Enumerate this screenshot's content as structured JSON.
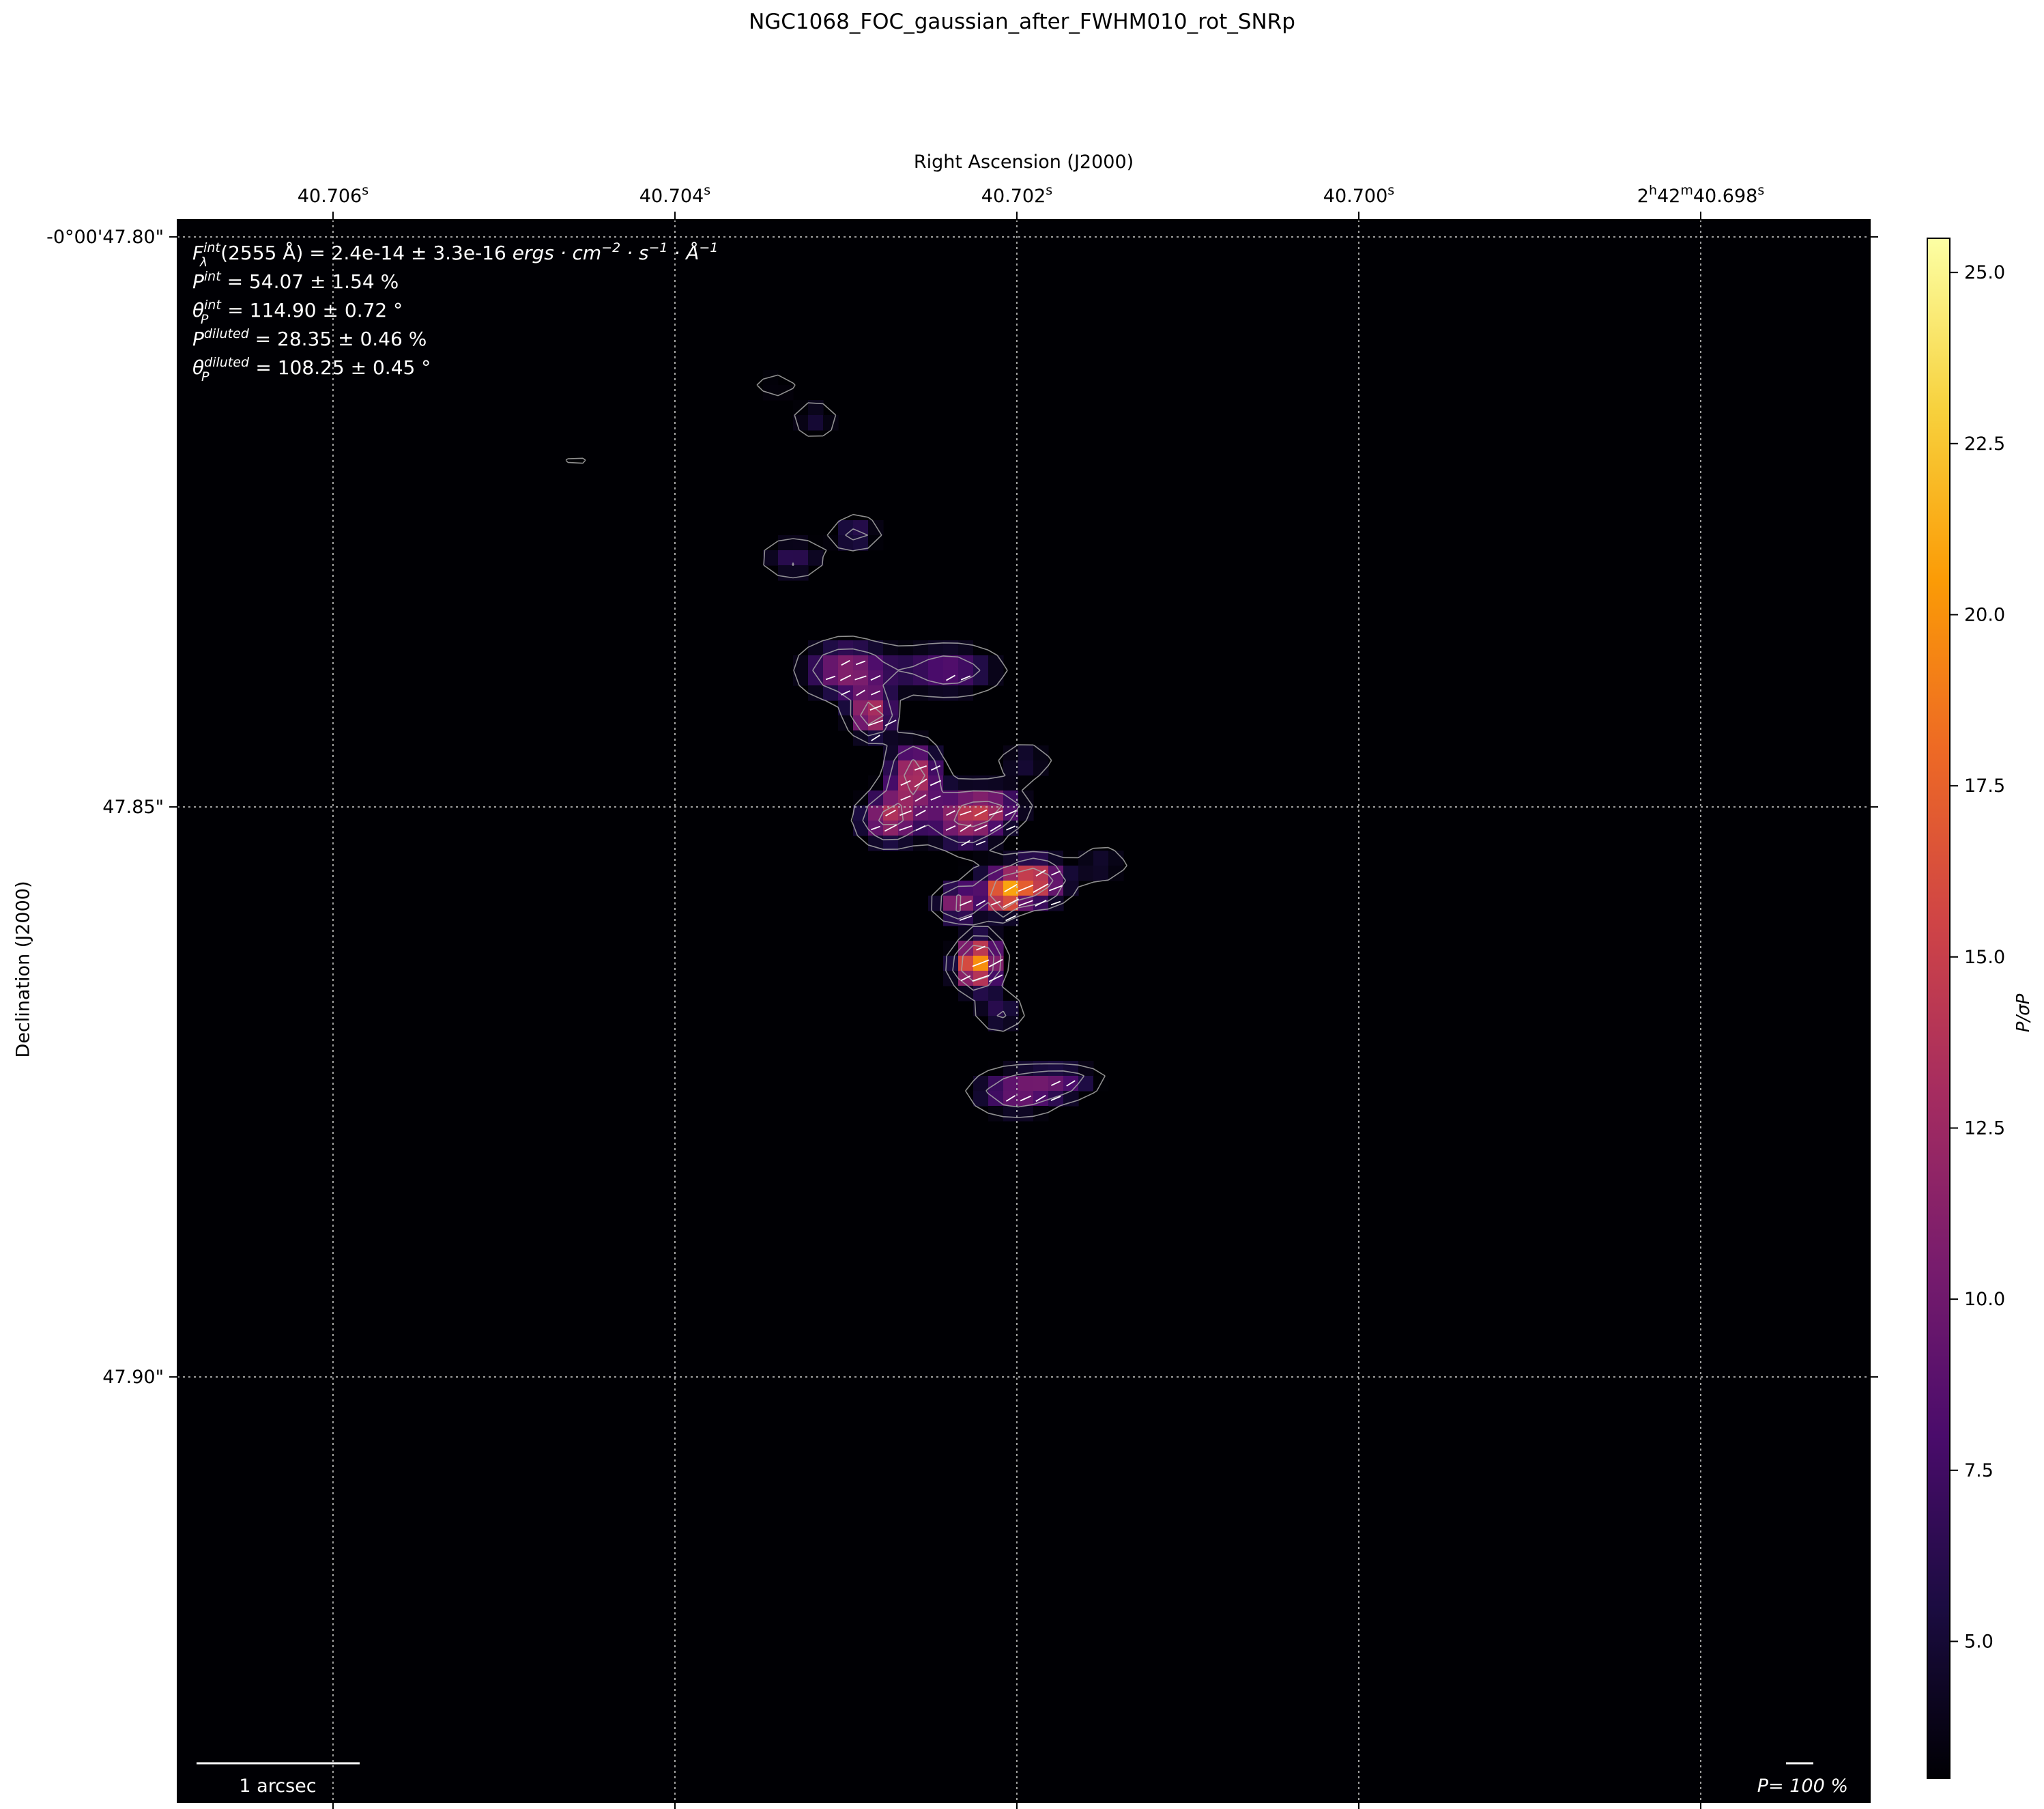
{
  "figure": {
    "title": "NGC1068_FOC_gaussian_after_FWHM010_rot_SNRp"
  },
  "colors": {
    "background": "#000004",
    "contour": "#a8a8a8",
    "vectors": "#ffffff",
    "grid": "#c8c8c8",
    "colormap": [
      "#000004",
      "#1b0c41",
      "#4a0c6b",
      "#781c6d",
      "#a52c60",
      "#cf4446",
      "#ed6925",
      "#fb9b06",
      "#f7d13d",
      "#fcffa4"
    ]
  },
  "chart_data": {
    "type": "heatmap",
    "title": "NGC1068_FOC_gaussian_after_FWHM010_rot_SNRp",
    "xlabel": "Right Ascension (J2000)",
    "ylabel": "Declination (J2000)",
    "colormap": "inferno",
    "colorbar": {
      "label": "P/σP",
      "range": [
        3.0,
        25.5
      ],
      "ticks": [
        5.0,
        7.5,
        10.0,
        12.5,
        15.0,
        17.5,
        20.0,
        22.5,
        25.0
      ],
      "tick_labels": [
        "5.0",
        "7.5",
        "10.0",
        "12.5",
        "15.0",
        "17.5",
        "20.0",
        "22.5",
        "25.0"
      ]
    },
    "x_axis": {
      "unit": "s (RA seconds)",
      "range": [
        40.70691,
        40.69701
      ],
      "ticks": [
        40.706,
        40.704,
        40.702,
        40.7,
        40.698
      ],
      "tick_labels": [
        {
          "main": "40.706",
          "sup": "s"
        },
        {
          "main": "40.704",
          "sup": "s"
        },
        {
          "main": "40.702",
          "sup": "s"
        },
        {
          "main": "40.700",
          "sup": "s"
        },
        {
          "main": "2",
          "sup": "h",
          "main2": "42",
          "sup2": "m",
          "main3": "40.698",
          "sup3": "s"
        }
      ]
    },
    "y_axis": {
      "unit": "arcsec (Dec)",
      "range": [
        47.7985,
        47.9373
      ],
      "inverted": true,
      "ticks": [
        47.8,
        47.85,
        47.9
      ],
      "tick_labels": [
        "-0°00'47.80\"",
        "47.85\"",
        "47.90\""
      ]
    },
    "grid": true,
    "annotations": [
      {
        "name": "F",
        "sup": "int",
        "sub": "λ",
        "text": "(2555 Å) = 2.4e-14 ± 3.3e-16 ",
        "unit": "ergs · cm",
        "unit_sup1": "−2",
        "unit_mid": " · s",
        "unit_sup2": "−1",
        "unit_end": " · Å",
        "unit_sup3": "−1"
      },
      {
        "name": "P",
        "sup": "int",
        "text": " = 54.07 ± 1.54 %"
      },
      {
        "name": "θ",
        "sup": "int",
        "sub": "P",
        "text": " = 114.90 ± 0.72 °"
      },
      {
        "name": "P",
        "sup": "diluted",
        "text": " = 28.35 ± 0.46 %"
      },
      {
        "name": "θ",
        "sup": "diluted",
        "sub": "P",
        "text": " = 108.25 ± 0.45 °"
      }
    ],
    "scalebar_label": "1 arcsec",
    "vector_scale_label": "P= 100 %",
    "emission_blobs": [
      {
        "ra": 40.70331,
        "dec": 47.8282,
        "value": 8.0,
        "sig_ra": 0.00013,
        "sig_dec": 0.0012
      },
      {
        "ra": 40.70294,
        "dec": 47.826,
        "value": 9.0,
        "sig_ra": 0.0001,
        "sig_dec": 0.001
      },
      {
        "ra": 40.703,
        "dec": 47.838,
        "value": 12.5,
        "sig_ra": 0.00018,
        "sig_dec": 0.0017
      },
      {
        "ra": 40.7024,
        "dec": 47.838,
        "value": 10.0,
        "sig_ra": 0.00022,
        "sig_dec": 0.0015
      },
      {
        "ra": 40.70285,
        "dec": 47.842,
        "value": 18.0,
        "sig_ra": 8e-05,
        "sig_dec": 0.0012
      },
      {
        "ra": 40.7026,
        "dec": 47.847,
        "value": 16.0,
        "sig_ra": 0.0001,
        "sig_dec": 0.0018
      },
      {
        "ra": 40.7023,
        "dec": 47.851,
        "value": 14.0,
        "sig_ra": 0.00015,
        "sig_dec": 0.0018
      },
      {
        "ra": 40.70275,
        "dec": 47.851,
        "value": 15.0,
        "sig_ra": 0.00012,
        "sig_dec": 0.0015
      },
      {
        "ra": 40.7021,
        "dec": 47.85,
        "value": 9.0,
        "sig_ra": 0.00012,
        "sig_dec": 0.001
      },
      {
        "ra": 40.702,
        "dec": 47.857,
        "value": 14.5,
        "sig_ra": 0.00018,
        "sig_dec": 0.0012
      },
      {
        "ra": 40.70235,
        "dec": 47.8585,
        "value": 17.5,
        "sig_ra": 8e-05,
        "sig_dec": 0.0008
      },
      {
        "ra": 40.70207,
        "dec": 47.858,
        "value": 22.0,
        "sig_ra": 4e-05,
        "sig_dec": 0.0008
      },
      {
        "ra": 40.70188,
        "dec": 47.856,
        "value": 10.0,
        "sig_ra": 0.0001,
        "sig_dec": 0.0012
      },
      {
        "ra": 40.7022,
        "dec": 47.863,
        "value": 11.0,
        "sig_ra": 8e-05,
        "sig_dec": 0.0015
      },
      {
        "ra": 40.70225,
        "dec": 47.864,
        "value": 18.0,
        "sig_ra": 8e-05,
        "sig_dec": 0.0012
      },
      {
        "ra": 40.7021,
        "dec": 47.868,
        "value": 8.0,
        "sig_ra": 0.0001,
        "sig_dec": 0.0012
      },
      {
        "ra": 40.702,
        "dec": 47.875,
        "value": 11.5,
        "sig_ra": 0.00018,
        "sig_dec": 0.0013
      },
      {
        "ra": 40.7017,
        "dec": 47.874,
        "value": 9.0,
        "sig_ra": 0.00015,
        "sig_dec": 0.0008
      },
      {
        "ra": 40.70318,
        "dec": 47.816,
        "value": 6.5,
        "sig_ra": 0.0001,
        "sig_dec": 0.0012
      },
      {
        "ra": 40.70341,
        "dec": 47.813,
        "value": 6.0,
        "sig_ra": 9e-05,
        "sig_dec": 0.0008
      },
      {
        "ra": 40.70458,
        "dec": 47.82,
        "value": 5.0,
        "sig_ra": 8e-05,
        "sig_dec": 0.0006
      },
      {
        "ra": 40.7015,
        "dec": 47.855,
        "value": 6.0,
        "sig_ra": 0.00012,
        "sig_dec": 0.0012
      },
      {
        "ra": 40.70195,
        "dec": 47.846,
        "value": 6.5,
        "sig_ra": 0.00012,
        "sig_dec": 0.0012
      }
    ]
  }
}
